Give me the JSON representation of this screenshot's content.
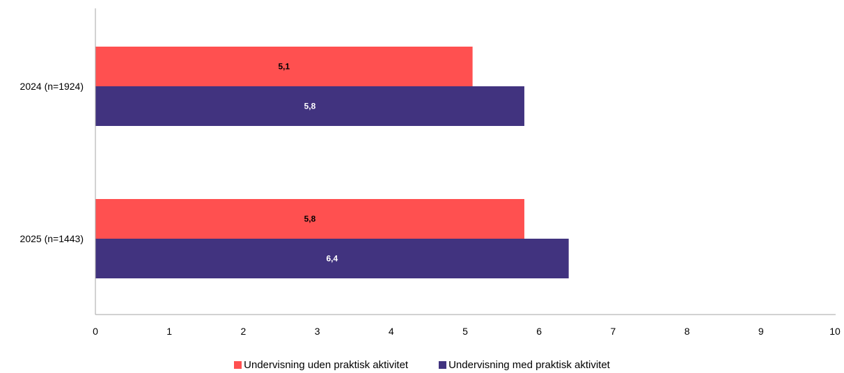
{
  "chart_data": {
    "type": "bar",
    "orientation": "horizontal",
    "categories": [
      "2024 (n=1924)",
      "2025 (n=1443)"
    ],
    "series": [
      {
        "name": "Undervisning uden praktisk aktivitet",
        "color": "#ff5050",
        "label_color": "#000000",
        "values": [
          5.1,
          5.8
        ],
        "labels": [
          "5,1",
          "5,8"
        ]
      },
      {
        "name": "Undervisning med praktisk aktivitet",
        "color": "#41337f",
        "label_color": "#ffffff",
        "values": [
          5.8,
          6.4
        ],
        "labels": [
          "5,8",
          "6,4"
        ]
      }
    ],
    "xlim": [
      0,
      10
    ],
    "xticks": [
      0,
      1,
      2,
      3,
      4,
      5,
      6,
      7,
      8,
      9,
      10
    ],
    "grid": false,
    "legend_position": "bottom"
  }
}
